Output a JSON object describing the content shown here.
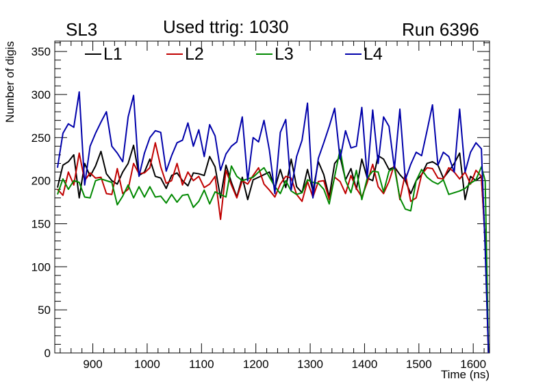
{
  "header": {
    "superlayer": "SL3",
    "title": "Used ttrig: 1030",
    "run": "Run 6396"
  },
  "chart_data": {
    "type": "line",
    "title": "Used ttrig: 1030",
    "xlabel": "Time (ns)",
    "ylabel": "Number of digis",
    "xlim": [
      830,
      1630
    ],
    "ylim": [
      0,
      362
    ],
    "x_ticks": [
      900,
      1000,
      1100,
      1200,
      1300,
      1400,
      1500,
      1600
    ],
    "y_ticks": [
      0,
      50,
      100,
      150,
      200,
      250,
      300,
      350
    ],
    "legend_position": "top-left, horizontal",
    "x": [
      835,
      845,
      855,
      865,
      875,
      885,
      895,
      905,
      915,
      925,
      935,
      945,
      955,
      965,
      975,
      985,
      995,
      1005,
      1015,
      1025,
      1035,
      1045,
      1055,
      1065,
      1075,
      1085,
      1095,
      1105,
      1115,
      1125,
      1135,
      1145,
      1155,
      1165,
      1175,
      1185,
      1195,
      1205,
      1215,
      1225,
      1235,
      1245,
      1255,
      1265,
      1275,
      1285,
      1295,
      1305,
      1315,
      1325,
      1335,
      1345,
      1355,
      1365,
      1375,
      1385,
      1395,
      1405,
      1415,
      1425,
      1435,
      1445,
      1455,
      1465,
      1475,
      1485,
      1495,
      1505,
      1515,
      1525,
      1535,
      1545,
      1555,
      1565,
      1575,
      1585,
      1595,
      1605,
      1615,
      1622,
      1628
    ],
    "series": [
      {
        "name": "L1",
        "color": "#000000",
        "values": [
          192,
          218,
          222,
          230,
          180,
          220,
          205,
          217,
          234,
          208,
          200,
          196,
          210,
          220,
          241,
          206,
          210,
          225,
          205,
          203,
          191,
          206,
          209,
          200,
          194,
          209,
          208,
          206,
          228,
          216,
          180,
          218,
          198,
          181,
          204,
          178,
          201,
          204,
          207,
          210,
          191,
          213,
          192,
          225,
          193,
          186,
          213,
          188,
          222,
          207,
          181,
          220,
          228,
          201,
          214,
          190,
          225,
          203,
          200,
          229,
          225,
          213,
          216,
          207,
          200,
          185,
          200,
          207,
          220,
          222,
          218,
          203,
          211,
          220,
          232,
          178,
          205,
          200,
          205,
          130,
          0
        ],
        "label_color": "#000000"
      },
      {
        "name": "L2",
        "color": "#c00000",
        "values": [
          190,
          183,
          210,
          195,
          232,
          200,
          209,
          203,
          204,
          185,
          184,
          214,
          185,
          190,
          220,
          208,
          209,
          215,
          244,
          216,
          197,
          200,
          220,
          195,
          210,
          200,
          205,
          192,
          196,
          205,
          155,
          212,
          195,
          180,
          200,
          196,
          206,
          215,
          196,
          189,
          181,
          196,
          205,
          203,
          184,
          176,
          199,
          181,
          199,
          200,
          178,
          204,
          199,
          185,
          206,
          191,
          181,
          198,
          219,
          193,
          185,
          199,
          219,
          178,
          208,
          176,
          180,
          207,
          215,
          214,
          203,
          202,
          215,
          210,
          202,
          210,
          196,
          212,
          205,
          130,
          0
        ],
        "label_color": "#c00000"
      },
      {
        "name": "L3",
        "color": "#008800",
        "values": [
          184,
          202,
          190,
          200,
          198,
          181,
          180,
          200,
          202,
          200,
          198,
          172,
          182,
          195,
          180,
          193,
          181,
          193,
          181,
          182,
          174,
          184,
          175,
          183,
          184,
          169,
          176,
          189,
          173,
          187,
          184,
          181,
          217,
          205,
          200,
          202,
          204,
          210,
          215,
          204,
          193,
          185,
          200,
          188,
          184,
          186,
          201,
          198,
          197,
          190,
          173,
          205,
          236,
          200,
          186,
          212,
          178,
          203,
          211,
          210,
          187,
          211,
          215,
          180,
          167,
          165,
          200,
          213,
          204,
          199,
          196,
          201,
          184,
          186,
          188,
          191,
          197,
          201,
          216,
          200,
          0
        ],
        "label_color": "#008800"
      },
      {
        "name": "L4",
        "color": "#0000aa",
        "values": [
          215,
          255,
          266,
          262,
          303,
          195,
          240,
          255,
          268,
          280,
          240,
          232,
          222,
          274,
          299,
          205,
          232,
          250,
          258,
          256,
          211,
          229,
          244,
          247,
          267,
          240,
          259,
          228,
          265,
          252,
          212,
          231,
          240,
          245,
          274,
          200,
          250,
          245,
          270,
          235,
          185,
          256,
          271,
          189,
          228,
          247,
          290,
          180,
          226,
          244,
          263,
          284,
          225,
          258,
          238,
          240,
          285,
          203,
          282,
          220,
          274,
          263,
          214,
          283,
          201,
          219,
          233,
          229,
          258,
          288,
          218,
          233,
          228,
          210,
          283,
          210,
          233,
          244,
          237,
          120,
          0
        ],
        "label_color": "#0000aa"
      }
    ]
  }
}
